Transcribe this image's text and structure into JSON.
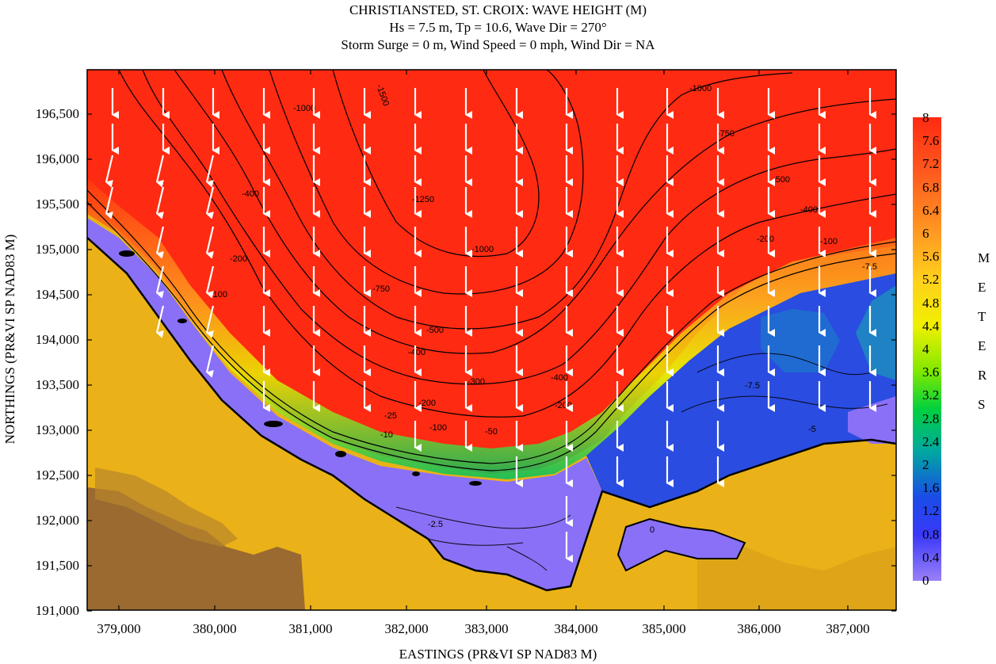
{
  "title": {
    "line1": "CHRISTIANSTED, ST. CROIX: WAVE HEIGHT (M)",
    "line2": "Hs = 7.5 m, Tp = 10.6, Wave Dir = 270°",
    "line3": "Storm Surge = 0 m, Wind Speed = 0 mph, Wind Dir = NA"
  },
  "axes": {
    "xlabel": "EASTINGS (PR&VI SP NAD83 M)",
    "ylabel": "NORTHINGS (PR&VI SP NAD83 M)",
    "xticks": [
      "379,000",
      "380,000",
      "381,000",
      "382,000",
      "383,000",
      "384,000",
      "385,000",
      "386,000",
      "387,000"
    ],
    "yticks": [
      "196,500",
      "196,000",
      "195,500",
      "195,000",
      "194,500",
      "194,000",
      "193,500",
      "193,000",
      "192,500",
      "192,000",
      "191,500",
      "191,000"
    ]
  },
  "colorbar": {
    "unit_letters": [
      "M",
      "E",
      "T",
      "E",
      "R",
      "S"
    ],
    "ticks": [
      "8",
      "7.6",
      "7.2",
      "6.8",
      "6.4",
      "6",
      "5.6",
      "5.2",
      "4.8",
      "4.4",
      "4",
      "3.6",
      "3.2",
      "2.8",
      "2.4",
      "2",
      "1.6",
      "1.2",
      "0.8",
      "0.4",
      "0"
    ],
    "colors": [
      "#ff2a12",
      "#ff6a20",
      "#ff9a22",
      "#ffc820",
      "#ffee10",
      "#c8f000",
      "#4ee000",
      "#00c868",
      "#1a62d8",
      "#2040ff",
      "#8a70f6"
    ]
  },
  "contour_labels": [
    "-1500",
    "-1250",
    "-1000",
    "-750",
    "-500",
    "-400",
    "-300",
    "-200",
    "-100",
    "-50",
    "-25",
    "-10",
    "-7.5",
    "-5",
    "-2.5",
    "0"
  ],
  "map": {
    "deep_water_color": "#ff2a12",
    "reef_water_color": "#2a4ce0",
    "lagoon_color": "#8a70f6",
    "land_color": "#eab218",
    "hills_color": "#9a6a30",
    "vector_color": "#ffffff"
  }
}
